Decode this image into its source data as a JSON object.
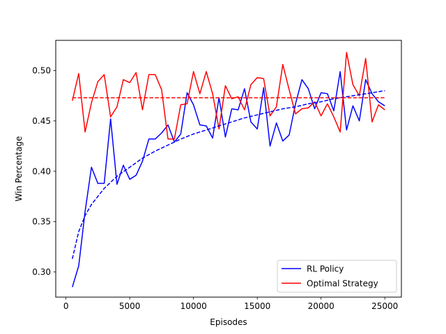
{
  "chart_data": {
    "type": "line",
    "title": "",
    "xlabel": "Episodes",
    "ylabel": "Win Percentage",
    "xlim": [
      -800,
      26300
    ],
    "ylim": [
      0.275,
      0.53
    ],
    "x_ticks": [
      0,
      5000,
      10000,
      15000,
      20000,
      25000
    ],
    "x_tick_labels": [
      "0",
      "5000",
      "10000",
      "15000",
      "20000",
      "25000"
    ],
    "y_ticks": [
      0.3,
      0.35,
      0.4,
      0.45,
      0.5
    ],
    "y_tick_labels": [
      "0.30",
      "0.35",
      "0.40",
      "0.45",
      "0.50"
    ],
    "grid": false,
    "legend_position": "lower-right",
    "series": [
      {
        "name": "RL Policy",
        "color": "#0000ff",
        "style": "solid",
        "x": [
          500,
          1000,
          1500,
          2000,
          2500,
          3000,
          3500,
          4000,
          4500,
          5000,
          5500,
          6000,
          6500,
          7000,
          7500,
          8000,
          8500,
          9000,
          9500,
          10000,
          10500,
          11000,
          11500,
          12000,
          12500,
          13000,
          13500,
          14000,
          14500,
          15000,
          15500,
          16000,
          16500,
          17000,
          17500,
          18000,
          18500,
          19000,
          19500,
          20000,
          20500,
          21000,
          21500,
          22000,
          22500,
          23000,
          23500,
          24000,
          24500,
          25000
        ],
        "y": [
          0.285,
          0.306,
          0.36,
          0.404,
          0.388,
          0.388,
          0.452,
          0.387,
          0.406,
          0.392,
          0.396,
          0.41,
          0.432,
          0.432,
          0.438,
          0.446,
          0.429,
          0.437,
          0.478,
          0.466,
          0.446,
          0.445,
          0.433,
          0.473,
          0.434,
          0.462,
          0.461,
          0.482,
          0.449,
          0.442,
          0.483,
          0.425,
          0.448,
          0.43,
          0.436,
          0.467,
          0.491,
          0.482,
          0.462,
          0.478,
          0.477,
          0.46,
          0.499,
          0.441,
          0.465,
          0.45,
          0.491,
          0.477,
          0.469,
          0.465
        ]
      },
      {
        "name": "Optimal Strategy",
        "color": "#ff0000",
        "style": "solid",
        "x": [
          500,
          1000,
          1500,
          2000,
          2500,
          3000,
          3500,
          4000,
          4500,
          5000,
          5500,
          6000,
          6500,
          7000,
          7500,
          8000,
          8500,
          9000,
          9500,
          10000,
          10500,
          11000,
          11500,
          12000,
          12500,
          13000,
          13500,
          14000,
          14500,
          15000,
          15500,
          16000,
          16500,
          17000,
          17500,
          18000,
          18500,
          19000,
          19500,
          20000,
          20500,
          21000,
          21500,
          22000,
          22500,
          23000,
          23500,
          24000,
          24500,
          25000
        ],
        "y": [
          0.47,
          0.497,
          0.439,
          0.468,
          0.489,
          0.496,
          0.454,
          0.464,
          0.491,
          0.488,
          0.498,
          0.461,
          0.496,
          0.496,
          0.481,
          0.432,
          0.432,
          0.466,
          0.467,
          0.499,
          0.477,
          0.499,
          0.477,
          0.442,
          0.485,
          0.472,
          0.474,
          0.461,
          0.486,
          0.493,
          0.492,
          0.455,
          0.464,
          0.506,
          0.481,
          0.457,
          0.462,
          0.463,
          0.469,
          0.455,
          0.467,
          0.454,
          0.439,
          0.518,
          0.486,
          0.475,
          0.512,
          0.449,
          0.466,
          0.461
        ]
      },
      {
        "name": "",
        "color": "#0000ff",
        "style": "dashed",
        "x": [
          500,
          1000,
          1500,
          2000,
          3000,
          4000,
          5000,
          6000,
          7000,
          8000,
          9000,
          10000,
          11000,
          12000,
          13000,
          14000,
          15000,
          16000,
          17000,
          18000,
          19000,
          20000,
          21000,
          22000,
          23000,
          24000,
          25000
        ],
        "y": [
          0.313,
          0.34,
          0.356,
          0.367,
          0.383,
          0.395,
          0.404,
          0.413,
          0.42,
          0.426,
          0.432,
          0.437,
          0.441,
          0.445,
          0.449,
          0.453,
          0.456,
          0.459,
          0.462,
          0.464,
          0.467,
          0.469,
          0.472,
          0.474,
          0.476,
          0.478,
          0.48
        ]
      },
      {
        "name": "",
        "color": "#ff0000",
        "style": "dashed",
        "x": [
          500,
          25000
        ],
        "y": [
          0.473,
          0.473
        ]
      }
    ]
  }
}
